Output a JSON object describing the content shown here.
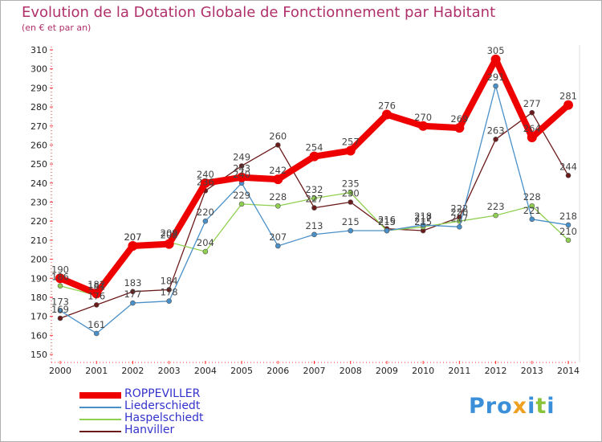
{
  "title": "Evolution de la Dotation Globale de Fonctionnement par Habitant",
  "subtitle": "(en € et par an)",
  "logo": {
    "parts": [
      "Pro",
      "x",
      "i",
      "t",
      "i"
    ],
    "colors": [
      "#3a8fd8",
      "#f0a020",
      "#3a8fd8",
      "#8ac43c",
      "#3a8fd8"
    ]
  },
  "chart_data": {
    "type": "line",
    "x": [
      "2000",
      "2001",
      "2002",
      "2003",
      "2004",
      "2005",
      "2006",
      "2007",
      "2008",
      "2009",
      "2010",
      "2011",
      "2012",
      "2013",
      "2014"
    ],
    "ylim": [
      150,
      310
    ],
    "yticks": [
      150,
      160,
      170,
      180,
      190,
      200,
      210,
      220,
      230,
      240,
      250,
      260,
      270,
      280,
      290,
      300,
      310
    ],
    "grid": false,
    "legend_position": "bottom-left",
    "series": [
      {
        "name": "ROPPEVILLER",
        "color": "#ee0000",
        "values": [
          190,
          182,
          207,
          208,
          240,
          243,
          242,
          254,
          257,
          276,
          270,
          269,
          305,
          264,
          281
        ]
      },
      {
        "name": "Liederschiedt",
        "color": "#4a90c8",
        "values": [
          173,
          161,
          177,
          178,
          220,
          240,
          207,
          213,
          215,
          215,
          218,
          217,
          291,
          221,
          218
        ]
      },
      {
        "name": "Haspelschiedt",
        "color": "#90d050",
        "values": [
          186,
          181,
          207,
          209,
          204,
          229,
          228,
          232,
          235,
          215,
          217,
          220,
          223,
          228,
          210
        ]
      },
      {
        "name": "Hanviller",
        "color": "#6b1a1a",
        "values": [
          169,
          176,
          183,
          184,
          236,
          249,
          260,
          227,
          230,
          216,
          215,
          222,
          263,
          277,
          244
        ]
      }
    ]
  }
}
